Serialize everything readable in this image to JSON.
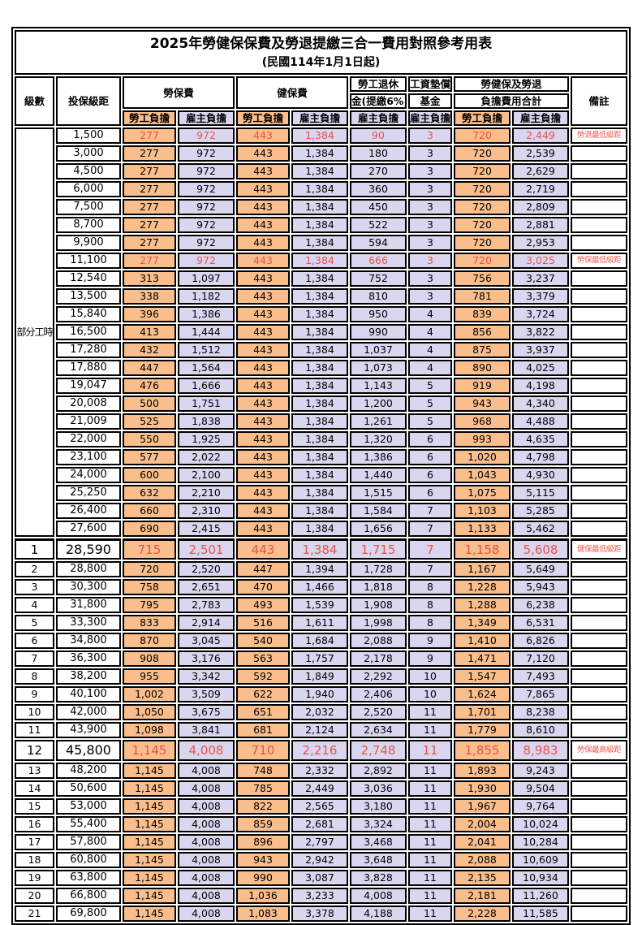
{
  "title": "2025年勞健保保費及勞退提繳三合一費用對照參考用表",
  "subtitle": "(民國114年1月1日起)",
  "header": {
    "level": "級數",
    "grade": "投保級距",
    "labor_fee": "勞保費",
    "health_fee": "健保費",
    "pension_line1": "勞工退休",
    "pension_line2": "金(提繳6%)",
    "wage_fund_line1": "工資墊償",
    "wage_fund_line2": "基金",
    "total_line1": "勞健保及勞退",
    "total_line2": "負擔費用合計",
    "note": "備註",
    "worker": "勞工負擔",
    "employer": "雇主負擔"
  },
  "part_time_label": "部分工時",
  "colors": {
    "worker_column_bg": "#F9BE8C",
    "employer_column_bg": "#DBD6EF",
    "highlight_text": "#E8524C",
    "note_text": "#EF5D55",
    "border": "#000000"
  },
  "rows": [
    {
      "level": null,
      "grade": "1,500",
      "values": [
        "277",
        "972",
        "443",
        "1,384",
        "90",
        "3",
        "720",
        "2,449"
      ],
      "note": "勞退最低級距",
      "red": true,
      "large": false
    },
    {
      "level": null,
      "grade": "3,000",
      "values": [
        "277",
        "972",
        "443",
        "1,384",
        "180",
        "3",
        "720",
        "2,539"
      ],
      "note": "",
      "red": false,
      "large": false
    },
    {
      "level": null,
      "grade": "4,500",
      "values": [
        "277",
        "972",
        "443",
        "1,384",
        "270",
        "3",
        "720",
        "2,629"
      ],
      "note": "",
      "red": false,
      "large": false
    },
    {
      "level": null,
      "grade": "6,000",
      "values": [
        "277",
        "972",
        "443",
        "1,384",
        "360",
        "3",
        "720",
        "2,719"
      ],
      "note": "",
      "red": false,
      "large": false
    },
    {
      "level": null,
      "grade": "7,500",
      "values": [
        "277",
        "972",
        "443",
        "1,384",
        "450",
        "3",
        "720",
        "2,809"
      ],
      "note": "",
      "red": false,
      "large": false
    },
    {
      "level": null,
      "grade": "8,700",
      "values": [
        "277",
        "972",
        "443",
        "1,384",
        "522",
        "3",
        "720",
        "2,881"
      ],
      "note": "",
      "red": false,
      "large": false
    },
    {
      "level": null,
      "grade": "9,900",
      "values": [
        "277",
        "972",
        "443",
        "1,384",
        "594",
        "3",
        "720",
        "2,953"
      ],
      "note": "",
      "red": false,
      "large": false
    },
    {
      "level": null,
      "grade": "11,100",
      "values": [
        "277",
        "972",
        "443",
        "1,384",
        "666",
        "3",
        "720",
        "3,025"
      ],
      "note": "勞保最低級距",
      "red": true,
      "large": false
    },
    {
      "level": null,
      "grade": "12,540",
      "values": [
        "313",
        "1,097",
        "443",
        "1,384",
        "752",
        "3",
        "756",
        "3,237"
      ],
      "note": "",
      "red": false,
      "large": false
    },
    {
      "level": null,
      "grade": "13,500",
      "values": [
        "338",
        "1,182",
        "443",
        "1,384",
        "810",
        "3",
        "781",
        "3,379"
      ],
      "note": "",
      "red": false,
      "large": false
    },
    {
      "level": null,
      "grade": "15,840",
      "values": [
        "396",
        "1,386",
        "443",
        "1,384",
        "950",
        "4",
        "839",
        "3,724"
      ],
      "note": "",
      "red": false,
      "large": false
    },
    {
      "level": null,
      "grade": "16,500",
      "values": [
        "413",
        "1,444",
        "443",
        "1,384",
        "990",
        "4",
        "856",
        "3,822"
      ],
      "note": "",
      "red": false,
      "large": false
    },
    {
      "level": null,
      "grade": "17,280",
      "values": [
        "432",
        "1,512",
        "443",
        "1,384",
        "1,037",
        "4",
        "875",
        "3,937"
      ],
      "note": "",
      "red": false,
      "large": false
    },
    {
      "level": null,
      "grade": "17,880",
      "values": [
        "447",
        "1,564",
        "443",
        "1,384",
        "1,073",
        "4",
        "890",
        "4,025"
      ],
      "note": "",
      "red": false,
      "large": false
    },
    {
      "level": null,
      "grade": "19,047",
      "values": [
        "476",
        "1,666",
        "443",
        "1,384",
        "1,143",
        "5",
        "919",
        "4,198"
      ],
      "note": "",
      "red": false,
      "large": false
    },
    {
      "level": null,
      "grade": "20,008",
      "values": [
        "500",
        "1,751",
        "443",
        "1,384",
        "1,200",
        "5",
        "943",
        "4,340"
      ],
      "note": "",
      "red": false,
      "large": false
    },
    {
      "level": null,
      "grade": "21,009",
      "values": [
        "525",
        "1,838",
        "443",
        "1,384",
        "1,261",
        "5",
        "968",
        "4,488"
      ],
      "note": "",
      "red": false,
      "large": false
    },
    {
      "level": null,
      "grade": "22,000",
      "values": [
        "550",
        "1,925",
        "443",
        "1,384",
        "1,320",
        "6",
        "993",
        "4,635"
      ],
      "note": "",
      "red": false,
      "large": false
    },
    {
      "level": null,
      "grade": "23,100",
      "values": [
        "577",
        "2,022",
        "443",
        "1,384",
        "1,386",
        "6",
        "1,020",
        "4,798"
      ],
      "note": "",
      "red": false,
      "large": false
    },
    {
      "level": null,
      "grade": "24,000",
      "values": [
        "600",
        "2,100",
        "443",
        "1,384",
        "1,440",
        "6",
        "1,043",
        "4,930"
      ],
      "note": "",
      "red": false,
      "large": false
    },
    {
      "level": null,
      "grade": "25,250",
      "values": [
        "632",
        "2,210",
        "443",
        "1,384",
        "1,515",
        "6",
        "1,075",
        "5,115"
      ],
      "note": "",
      "red": false,
      "large": false
    },
    {
      "level": null,
      "grade": "26,400",
      "values": [
        "660",
        "2,310",
        "443",
        "1,384",
        "1,584",
        "7",
        "1,103",
        "5,285"
      ],
      "note": "",
      "red": false,
      "large": false
    },
    {
      "level": null,
      "grade": "27,600",
      "values": [
        "690",
        "2,415",
        "443",
        "1,384",
        "1,656",
        "7",
        "1,133",
        "5,462"
      ],
      "note": "",
      "red": false,
      "large": false
    },
    {
      "level": "1",
      "grade": "28,590",
      "values": [
        "715",
        "2,501",
        "443",
        "1,384",
        "1,715",
        "7",
        "1,158",
        "5,608"
      ],
      "note": "健保最低級距",
      "red": true,
      "large": true
    },
    {
      "level": "2",
      "grade": "28,800",
      "values": [
        "720",
        "2,520",
        "447",
        "1,394",
        "1,728",
        "7",
        "1,167",
        "5,649"
      ],
      "note": "",
      "red": false,
      "large": false
    },
    {
      "level": "3",
      "grade": "30,300",
      "values": [
        "758",
        "2,651",
        "470",
        "1,466",
        "1,818",
        "8",
        "1,228",
        "5,943"
      ],
      "note": "",
      "red": false,
      "large": false
    },
    {
      "level": "4",
      "grade": "31,800",
      "values": [
        "795",
        "2,783",
        "493",
        "1,539",
        "1,908",
        "8",
        "1,288",
        "6,238"
      ],
      "note": "",
      "red": false,
      "large": false
    },
    {
      "level": "5",
      "grade": "33,300",
      "values": [
        "833",
        "2,914",
        "516",
        "1,611",
        "1,998",
        "8",
        "1,349",
        "6,531"
      ],
      "note": "",
      "red": false,
      "large": false
    },
    {
      "level": "6",
      "grade": "34,800",
      "values": [
        "870",
        "3,045",
        "540",
        "1,684",
        "2,088",
        "9",
        "1,410",
        "6,826"
      ],
      "note": "",
      "red": false,
      "large": false
    },
    {
      "level": "7",
      "grade": "36,300",
      "values": [
        "908",
        "3,176",
        "563",
        "1,757",
        "2,178",
        "9",
        "1,471",
        "7,120"
      ],
      "note": "",
      "red": false,
      "large": false
    },
    {
      "level": "8",
      "grade": "38,200",
      "values": [
        "955",
        "3,342",
        "592",
        "1,849",
        "2,292",
        "10",
        "1,547",
        "7,493"
      ],
      "note": "",
      "red": false,
      "large": false
    },
    {
      "level": "9",
      "grade": "40,100",
      "values": [
        "1,002",
        "3,509",
        "622",
        "1,940",
        "2,406",
        "10",
        "1,624",
        "7,865"
      ],
      "note": "",
      "red": false,
      "large": false
    },
    {
      "level": "10",
      "grade": "42,000",
      "values": [
        "1,050",
        "3,675",
        "651",
        "2,032",
        "2,520",
        "11",
        "1,701",
        "8,238"
      ],
      "note": "",
      "red": false,
      "large": false
    },
    {
      "level": "11",
      "grade": "43,900",
      "values": [
        "1,098",
        "3,841",
        "681",
        "2,124",
        "2,634",
        "11",
        "1,779",
        "8,610"
      ],
      "note": "",
      "red": false,
      "large": false
    },
    {
      "level": "12",
      "grade": "45,800",
      "values": [
        "1,145",
        "4,008",
        "710",
        "2,216",
        "2,748",
        "11",
        "1,855",
        "8,983"
      ],
      "note": "勞保最高級距",
      "red": true,
      "large": true
    },
    {
      "level": "13",
      "grade": "48,200",
      "values": [
        "1,145",
        "4,008",
        "748",
        "2,332",
        "2,892",
        "11",
        "1,893",
        "9,243"
      ],
      "note": "",
      "red": false,
      "large": false
    },
    {
      "level": "14",
      "grade": "50,600",
      "values": [
        "1,145",
        "4,008",
        "785",
        "2,449",
        "3,036",
        "11",
        "1,930",
        "9,504"
      ],
      "note": "",
      "red": false,
      "large": false
    },
    {
      "level": "15",
      "grade": "53,000",
      "values": [
        "1,145",
        "4,008",
        "822",
        "2,565",
        "3,180",
        "11",
        "1,967",
        "9,764"
      ],
      "note": "",
      "red": false,
      "large": false
    },
    {
      "level": "16",
      "grade": "55,400",
      "values": [
        "1,145",
        "4,008",
        "859",
        "2,681",
        "3,324",
        "11",
        "2,004",
        "10,024"
      ],
      "note": "",
      "red": false,
      "large": false
    },
    {
      "level": "17",
      "grade": "57,800",
      "values": [
        "1,145",
        "4,008",
        "896",
        "2,797",
        "3,468",
        "11",
        "2,041",
        "10,284"
      ],
      "note": "",
      "red": false,
      "large": false
    },
    {
      "level": "18",
      "grade": "60,800",
      "values": [
        "1,145",
        "4,008",
        "943",
        "2,942",
        "3,648",
        "11",
        "2,088",
        "10,609"
      ],
      "note": "",
      "red": false,
      "large": false
    },
    {
      "level": "19",
      "grade": "63,800",
      "values": [
        "1,145",
        "4,008",
        "990",
        "3,087",
        "3,828",
        "11",
        "2,135",
        "10,934"
      ],
      "note": "",
      "red": false,
      "large": false
    },
    {
      "level": "20",
      "grade": "66,800",
      "values": [
        "1,145",
        "4,008",
        "1,036",
        "3,233",
        "4,008",
        "11",
        "2,181",
        "11,260"
      ],
      "note": "",
      "red": false,
      "large": false
    },
    {
      "level": "21",
      "grade": "69,800",
      "values": [
        "1,145",
        "4,008",
        "1,083",
        "3,378",
        "4,188",
        "11",
        "2,228",
        "11,585"
      ],
      "note": "",
      "red": false,
      "large": false
    }
  ]
}
